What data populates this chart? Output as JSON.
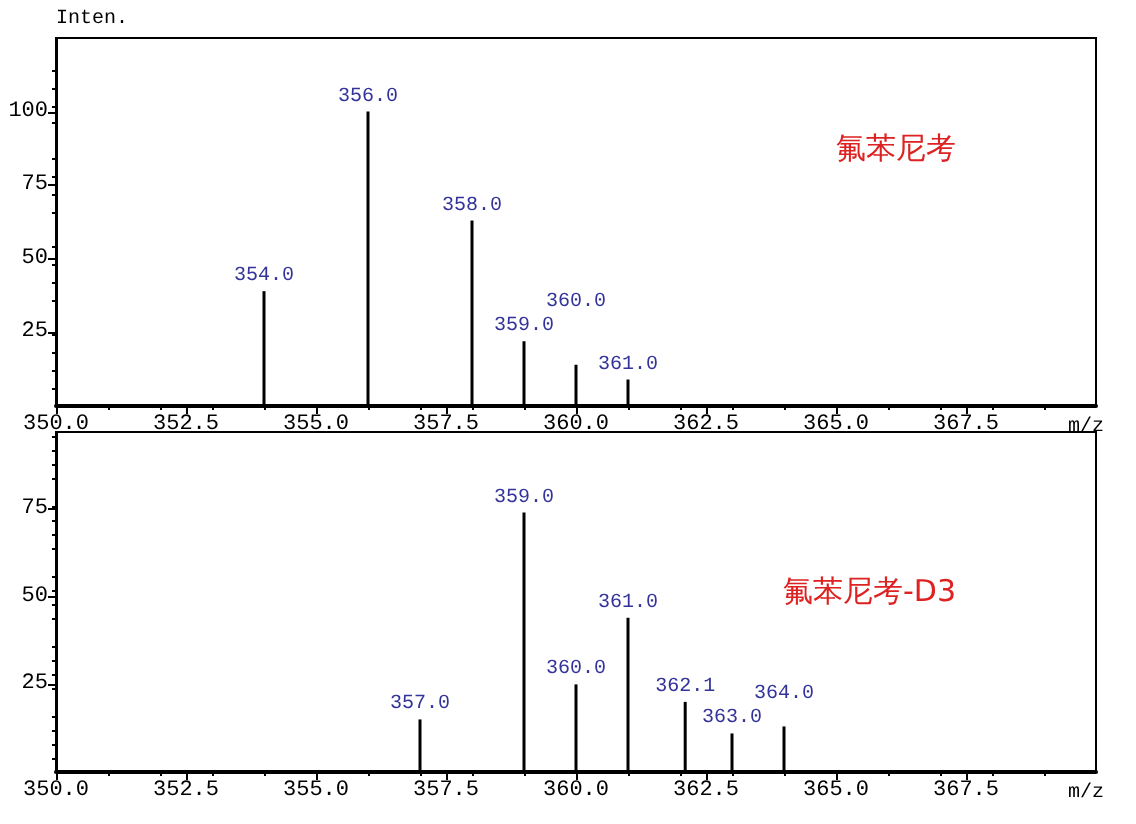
{
  "chart_data": [
    {
      "type": "bar",
      "ylabel": "Inten.",
      "xlabel": "m/z",
      "color": "#000000",
      "annotations": [
        "氟苯尼考",
        {
          "text": "354.0",
          "x": 354.0,
          "y": 39
        },
        {
          "text": "356.0",
          "x": 356.0,
          "y": 100
        },
        {
          "text": "358.0",
          "x": 358.0,
          "y": 63
        },
        {
          "text": "359.0",
          "x": 359.0,
          "y": 22
        },
        {
          "text": "360.0",
          "x": 360.0,
          "y": 14
        },
        {
          "text": "361.0",
          "x": 361.0,
          "y": 9
        }
      ],
      "x": [
        354.0,
        356.0,
        358.0,
        359.0,
        360.0,
        361.0
      ],
      "values": [
        39,
        100,
        63,
        22,
        14,
        9
      ],
      "xlim": [
        350,
        370
      ],
      "ylim": [
        0,
        125
      ],
      "xticks": [
        {
          "value": 350,
          "label": "350.0"
        },
        {
          "value": 352.5,
          "label": "352.5"
        },
        {
          "value": 355,
          "label": "355.0"
        },
        {
          "value": 357.5,
          "label": "357.5"
        },
        {
          "value": 360,
          "label": "360.0"
        },
        {
          "value": 362.5,
          "label": "362.5"
        },
        {
          "value": 365,
          "label": "365.0"
        },
        {
          "value": 367.5,
          "label": "367.5"
        }
      ],
      "yticks": [
        25,
        50,
        75,
        100
      ],
      "grid": false
    },
    {
      "type": "bar",
      "xlabel": "m/z",
      "color": "#000000",
      "annotations": [
        "氟苯尼考-D3",
        {
          "text": "357.0",
          "x": 357.0,
          "y": 15
        },
        {
          "text": "359.0",
          "x": 359.0,
          "y": 74
        },
        {
          "text": "360.0",
          "x": 360.0,
          "y": 25
        },
        {
          "text": "361.0",
          "x": 361.0,
          "y": 44
        },
        {
          "text": "362.1",
          "x": 362.1,
          "y": 20
        },
        {
          "text": "363.0",
          "x": 363.0,
          "y": 11
        },
        {
          "text": "364.0",
          "x": 364.0,
          "y": 13
        }
      ],
      "x": [
        357.0,
        359.0,
        360.0,
        361.0,
        362.1,
        363.0,
        364.0
      ],
      "values": [
        15,
        74,
        25,
        44,
        20,
        11,
        13
      ],
      "xlim": [
        350,
        370
      ],
      "ylim": [
        0,
        97
      ],
      "xticks": [
        {
          "value": 350,
          "label": "350.0"
        },
        {
          "value": 352.5,
          "label": "352.5"
        },
        {
          "value": 355,
          "label": "355.0"
        },
        {
          "value": 357.5,
          "label": "357.5"
        },
        {
          "value": 360,
          "label": "360.0"
        },
        {
          "value": 362.5,
          "label": "362.5"
        },
        {
          "value": 365,
          "label": "365.0"
        },
        {
          "value": 367.5,
          "label": "367.5"
        }
      ],
      "yticks": [
        25,
        50,
        75
      ],
      "grid": false
    }
  ]
}
